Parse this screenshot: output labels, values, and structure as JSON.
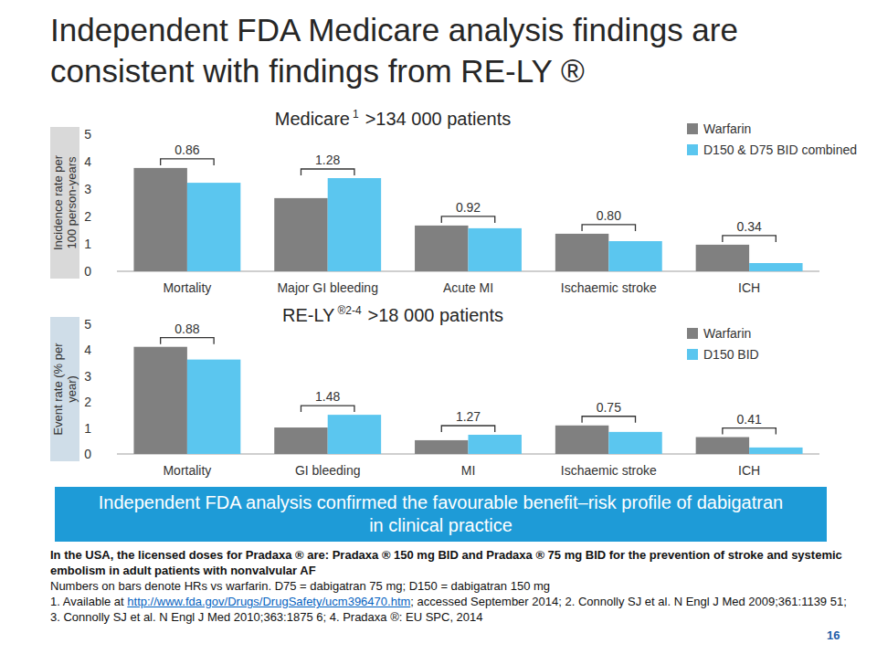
{
  "title": [
    "Independent FDA Medicare analysis findings are",
    "consistent with findings from RE-LY ®"
  ],
  "chart_data": [
    {
      "type": "bar",
      "title": "Medicare",
      "title_superscript": "1",
      "subtitle": ">134 000 patients",
      "ylabel": "Incidence rate per 100 person-years",
      "categories": [
        "Mortality",
        "Major GI bleeding",
        "Acute MI",
        "Ischaemic stroke",
        "ICH"
      ],
      "series": [
        {
          "name": "Warfarin",
          "color": "#808080",
          "values": [
            3.77,
            2.67,
            1.67,
            1.37,
            0.97
          ]
        },
        {
          "name": "D150 & D75 BID combined",
          "color": "#5bc6ef",
          "values": [
            3.23,
            3.4,
            1.57,
            1.1,
            0.3
          ]
        }
      ],
      "annotations": [
        "0.86",
        "1.28",
        "0.92",
        "0.80",
        "0.34"
      ],
      "ylim": [
        0,
        5
      ],
      "yticks": [
        0,
        1,
        2,
        3,
        4,
        5
      ],
      "grid": false,
      "legend": "upper right"
    },
    {
      "type": "bar",
      "title": "RE-LY",
      "title_superscript": "®2-4",
      "subtitle": ">18 000 patients",
      "ylabel": "Event rate (% per year)",
      "categories": [
        "Mortality",
        "GI bleeding",
        "MI",
        "Ischaemic stroke",
        "ICH"
      ],
      "series": [
        {
          "name": "Warfarin",
          "color": "#808080",
          "values": [
            4.13,
            1.02,
            0.53,
            1.1,
            0.65
          ]
        },
        {
          "name": "D150 BID",
          "color": "#5bc6ef",
          "values": [
            3.64,
            1.51,
            0.74,
            0.85,
            0.25
          ]
        }
      ],
      "annotations": [
        "0.88",
        "1.48",
        "1.27",
        "0.75",
        "0.41"
      ],
      "ylim": [
        0,
        5
      ],
      "yticks": [
        0,
        1,
        2,
        3,
        4,
        5
      ],
      "grid": false,
      "legend": "upper right"
    }
  ],
  "banner": "Independent FDA analysis confirmed the favourable benefit–risk profile of dabigatran in clinical practice",
  "footnotes": {
    "note": "In the USA, the licensed doses for Pradaxa ® are: Pradaxa ® 150 mg BID and Pradaxa ® 75 mg BID for the prevention of stroke and systemic embolism in adult patients with nonvalvular AF",
    "abbreviations": "Numbers on bars denote HRs vs warfarin. D75 = dabigatran 75 mg; D150 = dabigatran 150 mg",
    "references": {
      "before_link": "1. Available at ",
      "link": "http://www.fda.gov/Drugs/DrugSafety/ucm396470.htm",
      "after_link": "; accessed September 2014; 2. Connolly SJ et al. N Engl J Med 2009;361:1139 51; 3. Connolly SJ et al. N Engl J Med 2010;363:1875 6; 4. Pradaxa ®: EU SPC, 2014"
    }
  },
  "page_number": 16
}
